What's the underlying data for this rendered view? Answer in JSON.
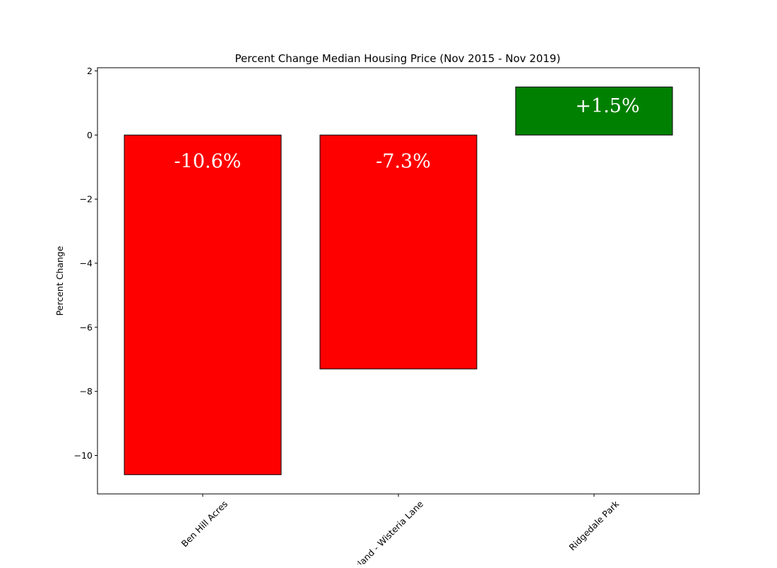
{
  "chart_data": {
    "type": "bar",
    "title": "Percent Change Median Housing Price (Nov 2015 - Nov 2019)",
    "xlabel": "",
    "ylabel": "Percent Change",
    "categories": [
      "Ben Hill Acres",
      "Oakland - Wisteria Lane",
      "Ridgedale Park"
    ],
    "values": [
      -10.6,
      -7.3,
      1.5
    ],
    "data_labels": [
      "-10.6%",
      "-7.3%",
      "+1.5%"
    ],
    "bar_colors": [
      "#ff0000",
      "#ff0000",
      "#008000"
    ],
    "edge_color": "#000000",
    "label_color": "#ffffff",
    "ylim": [
      -11.2,
      2.1
    ],
    "yticks": [
      2,
      0,
      -2,
      -4,
      -6,
      -8,
      -10
    ],
    "ytick_labels": [
      "2",
      "0",
      "−2",
      "−4",
      "−6",
      "−8",
      "−10"
    ],
    "grid": false,
    "legend": "none"
  }
}
